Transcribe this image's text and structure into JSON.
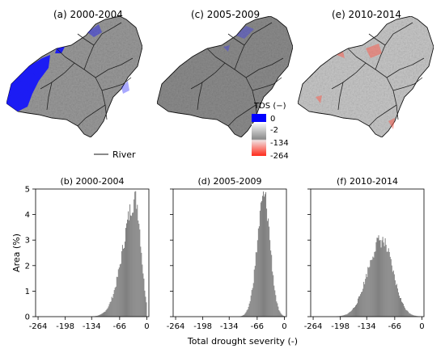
{
  "maps": [
    {
      "title": "(a)  2000-2004"
    },
    {
      "title": "(c)  2005-2009"
    },
    {
      "title": "(e)  2010-2014"
    }
  ],
  "legend": {
    "tds_title": "TDS (−)",
    "zero_label": "0",
    "scale_labels": [
      "-2",
      "-134",
      "-264"
    ],
    "river_label": "River",
    "colors": {
      "zero": "#0000ff",
      "low": "#f5f5f5",
      "mid": "#888888",
      "high": "#ff2a1a"
    }
  },
  "xlabel": "Total drought severity (-)",
  "ylabel": "Area (%)",
  "chart_data": [
    {
      "type": "bar",
      "title": "(b) 2000-2004",
      "xlabel": "Total drought severity (-)",
      "ylabel": "Area (%)",
      "xlim": [
        -270,
        5
      ],
      "ylim": [
        0,
        5
      ],
      "xticks": [
        "-264",
        "-198",
        "-134",
        "-66",
        "0"
      ],
      "yticks": [
        "0",
        "1",
        "2",
        "3",
        "4",
        "5"
      ],
      "distribution": {
        "peak_x": -28,
        "peak_y": 4.6,
        "sigma_left": 30,
        "sigma_right": 13,
        "x_max": -2
      },
      "bar_color": "#808080"
    },
    {
      "type": "bar",
      "title": "(d) 2005-2009",
      "xlabel": "Total drought severity (-)",
      "ylim": [
        0,
        5
      ],
      "xlim": [
        -270,
        5
      ],
      "xticks": [
        "-264",
        "-198",
        "-134",
        "-66",
        "0"
      ],
      "distribution": {
        "peak_x": -50,
        "peak_y": 4.7,
        "sigma_left": 17,
        "sigma_right": 15,
        "x_max": -2
      },
      "bar_color": "#808080"
    },
    {
      "type": "bar",
      "title": "(f) 2010-2014",
      "xlabel": "Total drought severity (-)",
      "ylim": [
        0,
        5
      ],
      "xlim": [
        -270,
        5
      ],
      "xticks": [
        "-264",
        "-198",
        "-134",
        "-66",
        "0"
      ],
      "distribution": {
        "peak_x": -100,
        "peak_y": 3.0,
        "sigma_left": 32,
        "sigma_right": 28,
        "x_max": -2
      },
      "bar_color": "#808080"
    }
  ]
}
